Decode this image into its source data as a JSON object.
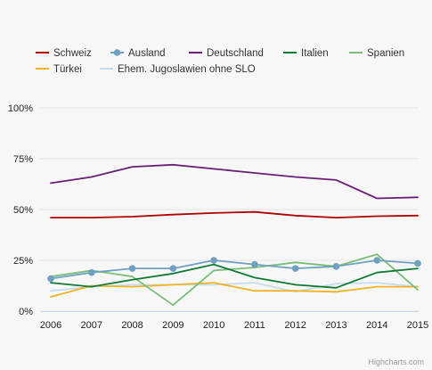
{
  "chart_data": {
    "type": "line",
    "x": [
      "2006",
      "2007",
      "2008",
      "2009",
      "2010",
      "2011",
      "2012",
      "2013",
      "2014",
      "2015"
    ],
    "ylim": [
      0,
      100
    ],
    "yticks": [
      "0%",
      "25%",
      "50%",
      "75%",
      "100%"
    ],
    "grid": true,
    "legend": "top",
    "series": [
      {
        "name": "Schweiz",
        "color": "#b00000",
        "values": [
          46,
          46,
          46.5,
          47.5,
          48.3,
          48.8,
          47,
          46,
          46.7,
          47
        ]
      },
      {
        "name": "Ausland",
        "color": "#6fa0c0",
        "marker": true,
        "values": [
          16,
          19,
          21,
          21,
          25,
          23,
          21,
          22,
          25,
          23.5
        ]
      },
      {
        "name": "Deutschland",
        "color": "#6b1f78",
        "values": [
          63,
          66,
          71,
          72,
          70,
          68,
          66,
          64.5,
          55.5,
          56
        ]
      },
      {
        "name": "Italien",
        "color": "#0e7a34",
        "values": [
          14,
          12,
          15.5,
          18.5,
          23,
          16.5,
          13,
          11.5,
          19,
          21
        ]
      },
      {
        "name": "Spanien",
        "color": "#79bd78",
        "values": [
          17,
          20,
          17,
          3,
          20,
          21.5,
          24,
          22,
          28,
          10.5
        ]
      },
      {
        "name": "Türkei",
        "color": "#f0b323",
        "values": [
          7,
          12.5,
          12,
          13,
          14,
          10,
          10,
          9.5,
          12,
          12
        ]
      },
      {
        "name": "Ehem. Jugoslawien ohne SLO",
        "color": "#c6dcea",
        "values": [
          10,
          12,
          13,
          13,
          13,
          14,
          9.5,
          13.5,
          14,
          12
        ]
      }
    ]
  },
  "credits": "Highcharts.com"
}
